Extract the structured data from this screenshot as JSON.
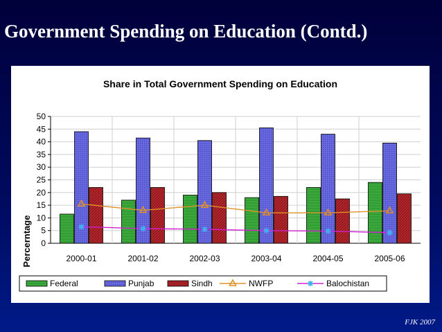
{
  "slide": {
    "title": "Government Spending on Education (Contd.)",
    "footer": "FJK 2007"
  },
  "chart_data": {
    "type": "bar",
    "title": "Share in Total Government Spending on Education",
    "ylabel": "Percerntage",
    "xlabel": "",
    "ylim": [
      0,
      50
    ],
    "yticks": [
      0,
      5,
      10,
      15,
      20,
      25,
      30,
      35,
      40,
      45,
      50
    ],
    "categories": [
      "2000-01",
      "2001-02",
      "2002-03",
      "2003-04",
      "2004-05",
      "2005-06"
    ],
    "grid": true,
    "legend_position": "bottom",
    "series": [
      {
        "name": "Federal",
        "kind": "bar",
        "color": "#3aa83a",
        "values": [
          11.5,
          17,
          19,
          18,
          22,
          24
        ]
      },
      {
        "name": "Punjab",
        "kind": "bar",
        "color": "#5b5bd6",
        "values": [
          44,
          41.5,
          40.5,
          45.5,
          43,
          39.5
        ]
      },
      {
        "name": "Sindh",
        "kind": "bar",
        "color": "#b3262b",
        "values": [
          22,
          22,
          20,
          18.5,
          17.5,
          19.5
        ]
      },
      {
        "name": "NWFP",
        "kind": "line",
        "color": "#e0902a",
        "marker": "triangle",
        "values": [
          15.5,
          13,
          15,
          12,
          12,
          12.8
        ]
      },
      {
        "name": "Balochistan",
        "kind": "line",
        "color": "#d020d0",
        "markerColor": "#40b0f0",
        "marker": "star",
        "values": [
          6.5,
          5.8,
          5.5,
          5,
          4.8,
          4.2
        ]
      }
    ]
  }
}
